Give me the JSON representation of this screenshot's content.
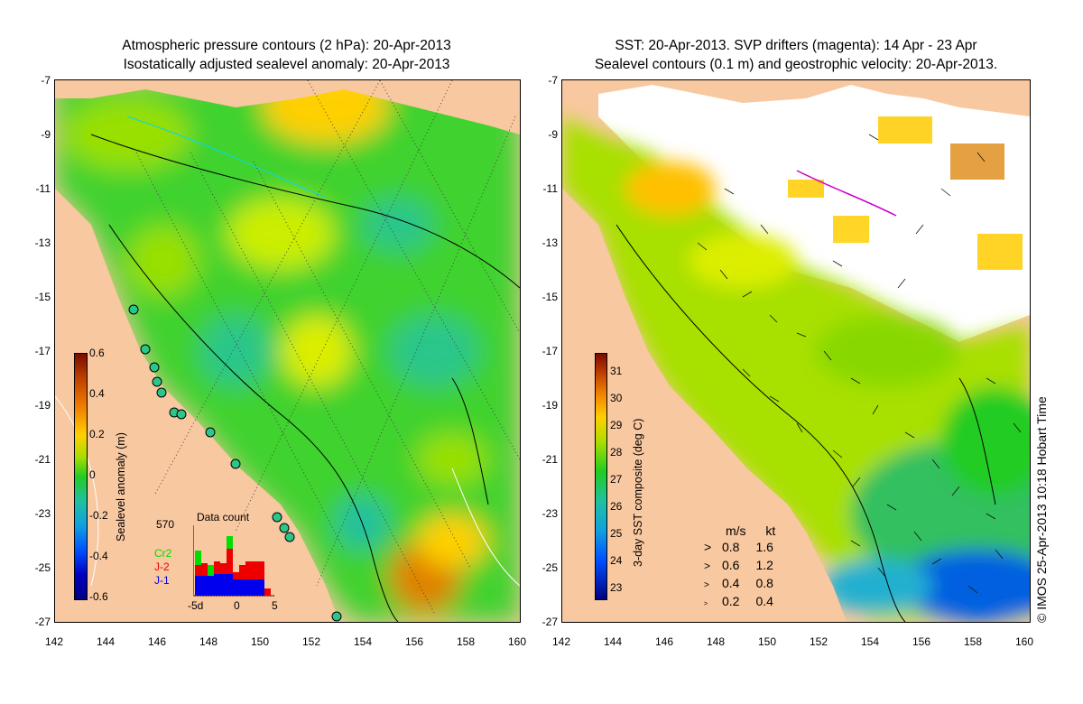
{
  "left_panel": {
    "title_line1": "Atmospheric pressure contours (2 hPa): 20-Apr-2013",
    "title_line2": "Isostatically adjusted sealevel anomaly: 20-Apr-2013",
    "colorbar_label": "Sealevel anomaly (m)",
    "colorbar_ticks": [
      "0.6",
      "0.4",
      "0.2",
      "0",
      "-0.2",
      "-0.4",
      "-0.6"
    ],
    "data_count": {
      "title": "Data count",
      "max_label": "570",
      "series_labels": [
        "Cr2",
        "J-2",
        "J-1"
      ],
      "series_colors": [
        "#00dd00",
        "#ee0000",
        "#0000ee"
      ],
      "x_ticks": [
        "-5d",
        "0",
        "5"
      ]
    }
  },
  "right_panel": {
    "title_line1": "SST: 20-Apr-2013. SVP drifters (magenta): 14 Apr - 23 Apr",
    "title_line2": "Sealevel contours (0.1 m) and geostrophic velocity: 20-Apr-2013.",
    "colorbar_label": "3-day SST composite (deg C)",
    "colorbar_ticks": [
      "31",
      "30",
      "29",
      "28",
      "27",
      "26",
      "25",
      "24",
      "23"
    ],
    "velocity_legend": {
      "header_ms": "m/s",
      "header_kt": "kt",
      "rows": [
        {
          "ms": "0.8",
          "kt": "1.6"
        },
        {
          "ms": "0.6",
          "kt": "1.2"
        },
        {
          "ms": "0.4",
          "kt": "0.8"
        },
        {
          "ms": "0.2",
          "kt": "0.4"
        }
      ]
    }
  },
  "axes": {
    "y_ticks": [
      "-7",
      "-9",
      "-11",
      "-13",
      "-15",
      "-17",
      "-19",
      "-21",
      "-23",
      "-25",
      "-27"
    ],
    "x_ticks": [
      "142",
      "144",
      "146",
      "148",
      "150",
      "152",
      "154",
      "156",
      "158",
      "160"
    ]
  },
  "copyright": "© IMOS 25-Apr-2013 10:18 Hobart Time",
  "colors": {
    "land": "#f8c8a0",
    "sla_zero": "#22cc22",
    "sst_28": "#88dd00"
  }
}
